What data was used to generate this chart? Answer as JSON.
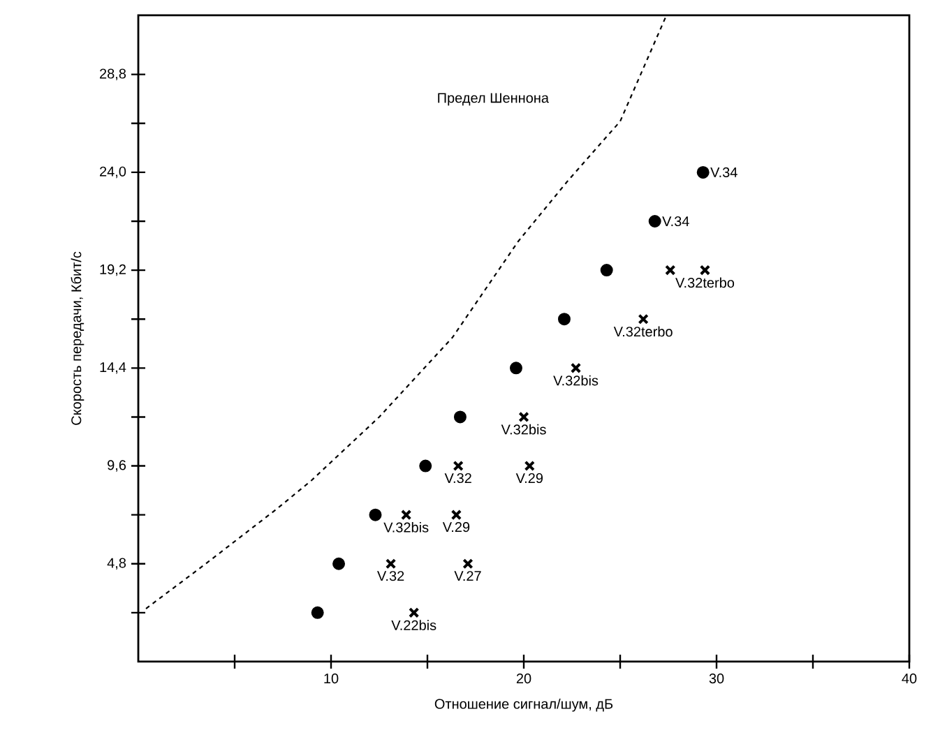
{
  "chart_data": {
    "type": "scatter",
    "xlabel": "Отношение сигнал/шум, дБ",
    "ylabel": "Скорость передачи, Кбит/с",
    "xlim": [
      0,
      40
    ],
    "ylim": [
      0,
      31.7
    ],
    "xticks": [
      {
        "value": 5,
        "label": null
      },
      10,
      {
        "value": 15,
        "label": null
      },
      20,
      {
        "value": 25,
        "label": null
      },
      30,
      {
        "value": 35,
        "label": null
      },
      40
    ],
    "yticks": [
      {
        "value": 2.4,
        "label": null
      },
      {
        "value": 4.8,
        "label": "4,8"
      },
      {
        "value": 7.2,
        "label": null
      },
      {
        "value": 9.6,
        "label": "9,6"
      },
      {
        "value": 12,
        "label": null
      },
      {
        "value": 14.4,
        "label": "14,4"
      },
      {
        "value": 16.8,
        "label": null
      },
      {
        "value": 19.2,
        "label": "19,2"
      },
      {
        "value": 21.6,
        "label": null
      },
      {
        "value": 24,
        "label": "24,0"
      },
      {
        "value": 26.4,
        "label": null
      },
      {
        "value": 28.8,
        "label": "28,8"
      }
    ],
    "series": [
      {
        "color": "#000000",
        "marker": "circle",
        "x": [
          9.3,
          10.4,
          12.3,
          14.9,
          16.7,
          19.6,
          22.1,
          24.3,
          26.8,
          29.3
        ],
        "values": [
          2.4,
          4.8,
          7.2,
          9.6,
          12,
          14.4,
          16.8,
          19.2,
          21.6,
          24
        ],
        "value_labels": [
          null,
          null,
          null,
          null,
          null,
          null,
          null,
          null,
          "V.34",
          "V.34"
        ]
      },
      {
        "color": "#000000",
        "marker": "cross",
        "x": [
          14.3,
          13.1,
          17.1,
          13.9,
          16.5,
          16.6,
          20.3,
          20.0,
          22.7,
          26.2,
          27.6,
          29.4
        ],
        "values": [
          2.4,
          4.8,
          4.8,
          7.2,
          7.2,
          9.6,
          9.6,
          12,
          14.4,
          16.8,
          19.2,
          19.2
        ],
        "value_labels": [
          "V.22bis",
          "V.32",
          "V.27",
          "V.32bis",
          "V.29",
          "V.32",
          "V.29",
          "V.32bis",
          "V.32bis",
          "V.32terbo",
          null,
          "V.32terbo"
        ]
      },
      {
        "type": "line",
        "name": "Предел Шеннона",
        "color": "#000000",
        "line_style": "dashed",
        "marker": "none",
        "x": [
          0.4,
          3.5,
          7.2,
          9.0,
          12.5,
          16.3,
          19.7,
          22.3,
          25.0,
          27.4
        ],
        "values": [
          2.6,
          4.8,
          7.5,
          8.9,
          12.0,
          15.9,
          20.6,
          23.6,
          26.5,
          31.7
        ]
      }
    ]
  }
}
